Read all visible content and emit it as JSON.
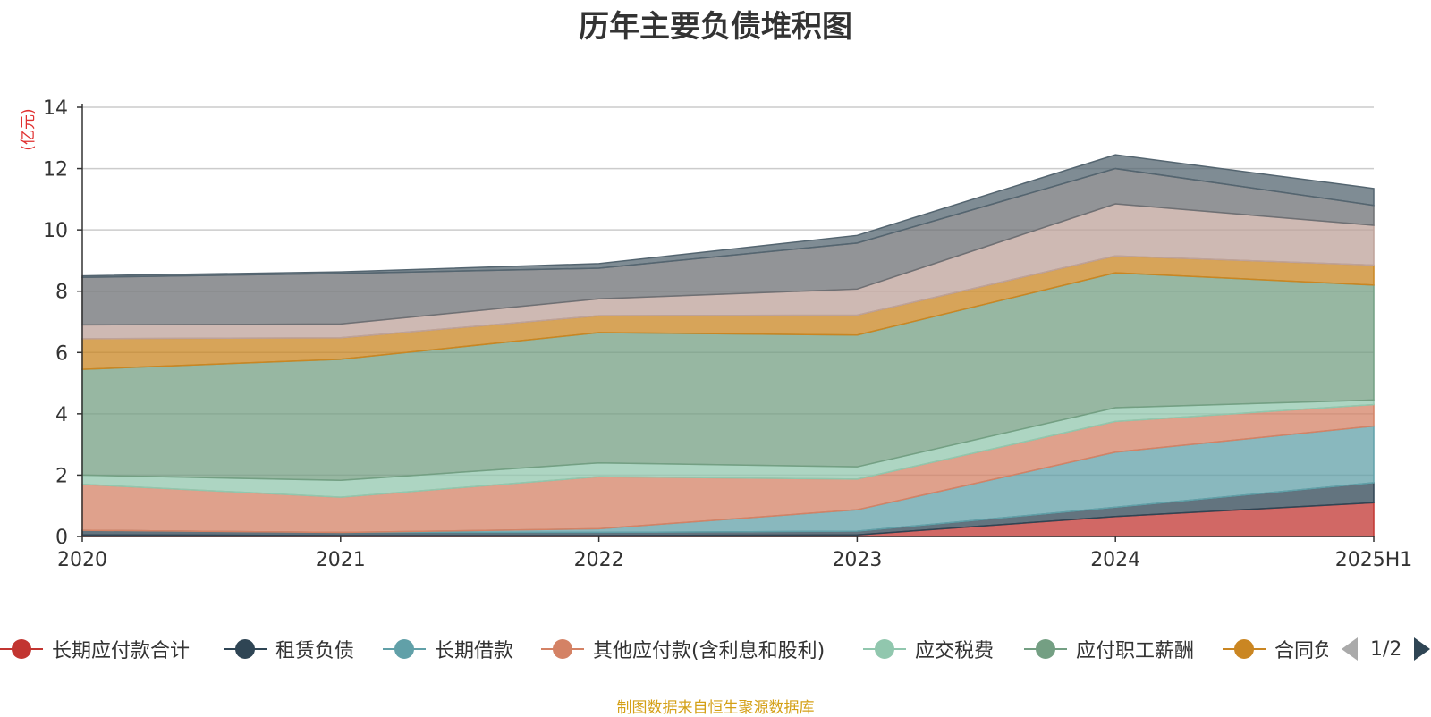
{
  "chart_data": {
    "type": "area",
    "stacked": true,
    "title": "历年主要负债堆积图",
    "ylabel": "(亿元)",
    "ylim": [
      0,
      14
    ],
    "yticks": [
      0,
      2,
      4,
      6,
      8,
      10,
      12,
      14
    ],
    "categories": [
      "2020",
      "2021",
      "2022",
      "2023",
      "2024",
      "2025H1"
    ],
    "grid": true,
    "series": [
      {
        "name": "长期应付款合计",
        "color": "#c23531",
        "values": [
          0.05,
          0.03,
          0.03,
          0.05,
          0.65,
          1.1
        ]
      },
      {
        "name": "租赁负债",
        "color": "#2f4554",
        "values": [
          0.15,
          0.1,
          0.1,
          0.12,
          0.3,
          0.65
        ]
      },
      {
        "name": "长期借款",
        "color": "#61a0a8",
        "values": [
          0.0,
          0.0,
          0.12,
          0.7,
          1.8,
          1.85
        ]
      },
      {
        "name": "其他应付款(含利息和股利)",
        "color": "#d48265",
        "values": [
          1.5,
          1.15,
          1.7,
          1.0,
          1.0,
          0.7
        ]
      },
      {
        "name": "应交税费",
        "color": "#91c7ae",
        "values": [
          0.3,
          0.55,
          0.45,
          0.4,
          0.45,
          0.15
        ]
      },
      {
        "name": "应付职工薪酬",
        "color": "#749f83",
        "values": [
          3.45,
          3.95,
          4.25,
          4.3,
          4.4,
          3.75
        ]
      },
      {
        "name": "合同负债",
        "color": "#ca8622",
        "values": [
          1.0,
          0.7,
          0.55,
          0.65,
          0.55,
          0.65
        ]
      },
      {
        "name": "",
        "color": "#bda29a",
        "values": [
          0.45,
          0.45,
          0.55,
          0.85,
          1.7,
          1.3
        ]
      },
      {
        "name": "",
        "color": "#6e7074",
        "values": [
          1.55,
          1.65,
          1.0,
          1.5,
          1.15,
          0.65
        ]
      },
      {
        "name": "",
        "color": "#546570",
        "values": [
          0.05,
          0.05,
          0.15,
          0.25,
          0.45,
          0.55
        ]
      }
    ]
  },
  "legend": {
    "items": [
      "长期应付款合计",
      "租赁负债",
      "长期借款",
      "其他应付款(含利息和股利)",
      "应交税费",
      "应付职工薪酬",
      "合同负债"
    ],
    "page": "1/2"
  },
  "source": "制图数据来自恒生聚源数据库"
}
